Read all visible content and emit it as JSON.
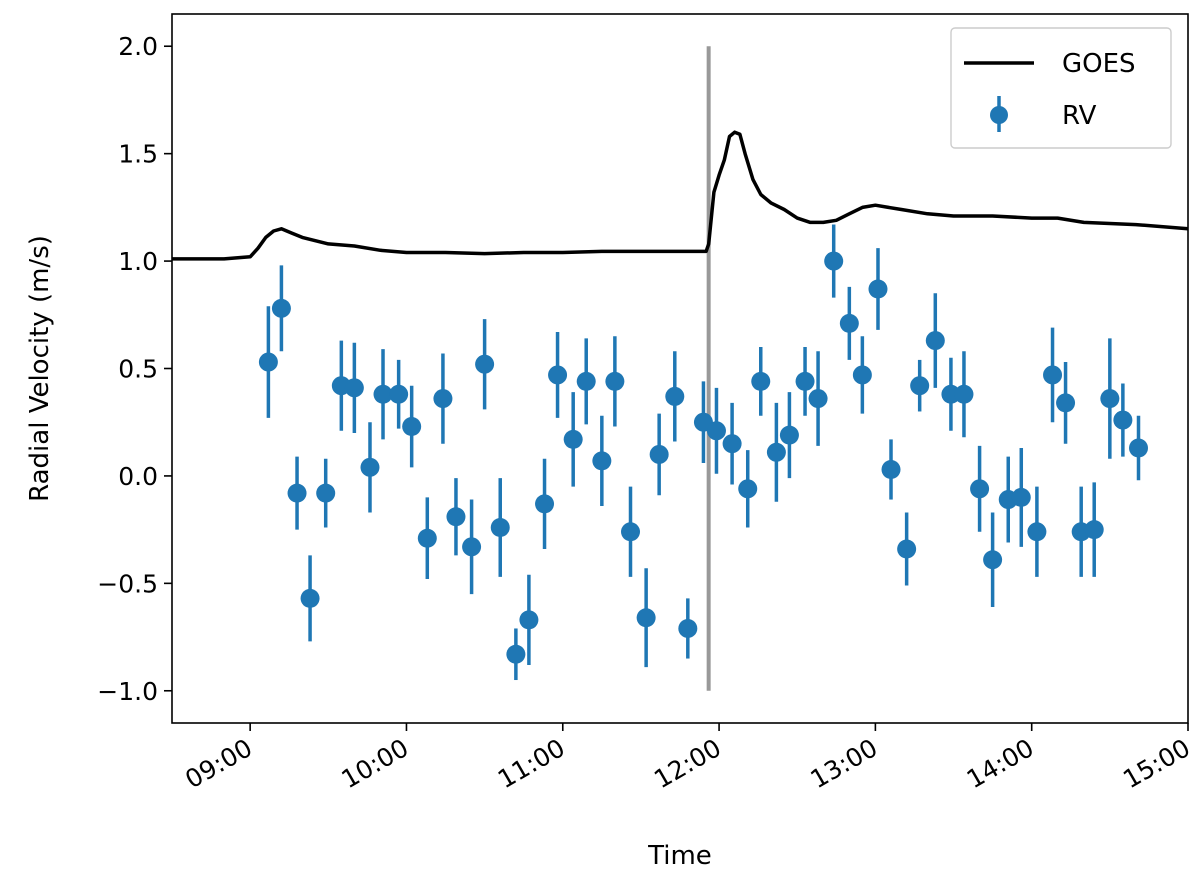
{
  "chart_data": {
    "type": "scatter",
    "xlabel": "Time",
    "ylabel": "Radial Velocity (m/s)",
    "xlim": [
      "08:30",
      "15:00"
    ],
    "ylim": [
      -1.15,
      2.15
    ],
    "x_ticks": [
      "09:00",
      "10:00",
      "11:00",
      "12:00",
      "13:00",
      "14:00",
      "15:00"
    ],
    "y_ticks": [
      -1.0,
      -0.5,
      0.0,
      0.5,
      1.0,
      1.5,
      2.0
    ],
    "y_tick_labels": [
      "−1.0",
      "−0.5",
      "0.0",
      "0.5",
      "1.0",
      "1.5",
      "2.0"
    ],
    "grid": false,
    "legend_position": "top-right",
    "colors": {
      "goes": "#000000",
      "rv": "#1f77b4",
      "marker_line": "#999999"
    },
    "vertical_marker": {
      "time": "11:56",
      "y_from": -1.0,
      "y_to": 2.0
    },
    "series": [
      {
        "name": "GOES",
        "kind": "line",
        "points": [
          [
            "08:30",
            1.01
          ],
          [
            "08:40",
            1.01
          ],
          [
            "08:50",
            1.01
          ],
          [
            "09:00",
            1.02
          ],
          [
            "09:03",
            1.06
          ],
          [
            "09:06",
            1.11
          ],
          [
            "09:09",
            1.14
          ],
          [
            "09:12",
            1.15
          ],
          [
            "09:16",
            1.13
          ],
          [
            "09:20",
            1.11
          ],
          [
            "09:30",
            1.08
          ],
          [
            "09:40",
            1.07
          ],
          [
            "09:50",
            1.05
          ],
          [
            "10:00",
            1.04
          ],
          [
            "10:15",
            1.04
          ],
          [
            "10:30",
            1.035
          ],
          [
            "10:45",
            1.04
          ],
          [
            "11:00",
            1.04
          ],
          [
            "11:15",
            1.045
          ],
          [
            "11:30",
            1.045
          ],
          [
            "11:45",
            1.045
          ],
          [
            "11:55",
            1.045
          ],
          [
            "11:56",
            1.08
          ],
          [
            "11:57",
            1.2
          ],
          [
            "11:58",
            1.32
          ],
          [
            "12:00",
            1.4
          ],
          [
            "12:02",
            1.47
          ],
          [
            "12:04",
            1.58
          ],
          [
            "12:06",
            1.6
          ],
          [
            "12:08",
            1.59
          ],
          [
            "12:10",
            1.5
          ],
          [
            "12:13",
            1.38
          ],
          [
            "12:16",
            1.31
          ],
          [
            "12:20",
            1.27
          ],
          [
            "12:25",
            1.24
          ],
          [
            "12:30",
            1.2
          ],
          [
            "12:35",
            1.18
          ],
          [
            "12:40",
            1.18
          ],
          [
            "12:45",
            1.19
          ],
          [
            "12:50",
            1.22
          ],
          [
            "12:55",
            1.25
          ],
          [
            "13:00",
            1.26
          ],
          [
            "13:05",
            1.25
          ],
          [
            "13:10",
            1.24
          ],
          [
            "13:20",
            1.22
          ],
          [
            "13:30",
            1.21
          ],
          [
            "13:45",
            1.21
          ],
          [
            "14:00",
            1.2
          ],
          [
            "14:10",
            1.2
          ],
          [
            "14:20",
            1.18
          ],
          [
            "14:40",
            1.17
          ],
          [
            "15:00",
            1.15
          ]
        ]
      },
      {
        "name": "RV",
        "kind": "errorbar",
        "points": [
          {
            "x": "09:07",
            "y": 0.53,
            "err": 0.26
          },
          {
            "x": "09:12",
            "y": 0.78,
            "err": 0.2
          },
          {
            "x": "09:18",
            "y": -0.08,
            "err": 0.17
          },
          {
            "x": "09:23",
            "y": -0.57,
            "err": 0.2
          },
          {
            "x": "09:29",
            "y": -0.08,
            "err": 0.16
          },
          {
            "x": "09:35",
            "y": 0.42,
            "err": 0.21
          },
          {
            "x": "09:40",
            "y": 0.41,
            "err": 0.21
          },
          {
            "x": "09:46",
            "y": 0.04,
            "err": 0.21
          },
          {
            "x": "09:51",
            "y": 0.38,
            "err": 0.21
          },
          {
            "x": "09:57",
            "y": 0.38,
            "err": 0.16
          },
          {
            "x": "10:02",
            "y": 0.23,
            "err": 0.19
          },
          {
            "x": "10:08",
            "y": -0.29,
            "err": 0.19
          },
          {
            "x": "10:14",
            "y": 0.36,
            "err": 0.21
          },
          {
            "x": "10:19",
            "y": -0.19,
            "err": 0.18
          },
          {
            "x": "10:25",
            "y": -0.33,
            "err": 0.22
          },
          {
            "x": "10:30",
            "y": 0.52,
            "err": 0.21
          },
          {
            "x": "10:36",
            "y": -0.24,
            "err": 0.23
          },
          {
            "x": "10:42",
            "y": -0.83,
            "err": 0.12
          },
          {
            "x": "10:47",
            "y": -0.67,
            "err": 0.21
          },
          {
            "x": "10:53",
            "y": -0.13,
            "err": 0.21
          },
          {
            "x": "10:58",
            "y": 0.47,
            "err": 0.2
          },
          {
            "x": "11:04",
            "y": 0.17,
            "err": 0.22
          },
          {
            "x": "11:09",
            "y": 0.44,
            "err": 0.2
          },
          {
            "x": "11:15",
            "y": 0.07,
            "err": 0.21
          },
          {
            "x": "11:20",
            "y": 0.44,
            "err": 0.21
          },
          {
            "x": "11:26",
            "y": -0.26,
            "err": 0.21
          },
          {
            "x": "11:32",
            "y": -0.66,
            "err": 0.23
          },
          {
            "x": "11:37",
            "y": 0.1,
            "err": 0.19
          },
          {
            "x": "11:43",
            "y": 0.37,
            "err": 0.21
          },
          {
            "x": "11:48",
            "y": -0.71,
            "err": 0.14
          },
          {
            "x": "11:54",
            "y": 0.25,
            "err": 0.19
          },
          {
            "x": "11:59",
            "y": 0.21,
            "err": 0.2
          },
          {
            "x": "12:05",
            "y": 0.15,
            "err": 0.19
          },
          {
            "x": "12:11",
            "y": -0.06,
            "err": 0.18
          },
          {
            "x": "12:16",
            "y": 0.44,
            "err": 0.16
          },
          {
            "x": "12:22",
            "y": 0.11,
            "err": 0.23
          },
          {
            "x": "12:27",
            "y": 0.19,
            "err": 0.2
          },
          {
            "x": "12:33",
            "y": 0.44,
            "err": 0.16
          },
          {
            "x": "12:38",
            "y": 0.36,
            "err": 0.22
          },
          {
            "x": "12:44",
            "y": 1.0,
            "err": 0.17
          },
          {
            "x": "12:50",
            "y": 0.71,
            "err": 0.17
          },
          {
            "x": "12:55",
            "y": 0.47,
            "err": 0.18
          },
          {
            "x": "13:01",
            "y": 0.87,
            "err": 0.19
          },
          {
            "x": "13:06",
            "y": 0.03,
            "err": 0.14
          },
          {
            "x": "13:12",
            "y": -0.34,
            "err": 0.17
          },
          {
            "x": "13:17",
            "y": 0.42,
            "err": 0.12
          },
          {
            "x": "13:23",
            "y": 0.63,
            "err": 0.22
          },
          {
            "x": "13:29",
            "y": 0.38,
            "err": 0.17
          },
          {
            "x": "13:34",
            "y": 0.38,
            "err": 0.2
          },
          {
            "x": "13:40",
            "y": -0.06,
            "err": 0.2
          },
          {
            "x": "13:45",
            "y": -0.39,
            "err": 0.22
          },
          {
            "x": "13:51",
            "y": -0.11,
            "err": 0.2
          },
          {
            "x": "13:56",
            "y": -0.1,
            "err": 0.23
          },
          {
            "x": "14:02",
            "y": -0.26,
            "err": 0.21
          },
          {
            "x": "14:08",
            "y": 0.47,
            "err": 0.22
          },
          {
            "x": "14:13",
            "y": 0.34,
            "err": 0.19
          },
          {
            "x": "14:19",
            "y": -0.26,
            "err": 0.21
          },
          {
            "x": "14:24",
            "y": -0.25,
            "err": 0.22
          },
          {
            "x": "14:30",
            "y": 0.36,
            "err": 0.28
          },
          {
            "x": "14:35",
            "y": 0.26,
            "err": 0.17
          },
          {
            "x": "14:41",
            "y": 0.13,
            "err": 0.15
          }
        ]
      }
    ]
  }
}
